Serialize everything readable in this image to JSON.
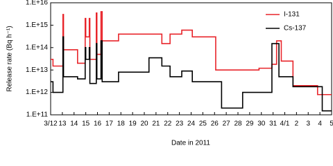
{
  "chart_data": {
    "type": "line",
    "ylabel": "Release rate  (Bq h⁻¹)",
    "xlabel": "Date in 2011",
    "ylog": true,
    "xlim": [
      0,
      24
    ],
    "ylim": [
      100000000000.0,
      1e+16
    ],
    "yticks": [
      {
        "value": 100000000000.0,
        "label": "1.E+11"
      },
      {
        "value": 1000000000000.0,
        "label": "1.E+12"
      },
      {
        "value": 10000000000000.0,
        "label": "1.E+13"
      },
      {
        "value": 100000000000000.0,
        "label": "1.E+14"
      },
      {
        "value": 1000000000000000.0,
        "label": "1.E+15"
      },
      {
        "value": 1e+16,
        "label": "1.E+16"
      }
    ],
    "xticks": [
      {
        "value": 0,
        "label": "3/12"
      },
      {
        "value": 1,
        "label": "13"
      },
      {
        "value": 2,
        "label": "14"
      },
      {
        "value": 3,
        "label": "15"
      },
      {
        "value": 4,
        "label": "16"
      },
      {
        "value": 5,
        "label": "17"
      },
      {
        "value": 6,
        "label": "18"
      },
      {
        "value": 7,
        "label": "19"
      },
      {
        "value": 8,
        "label": "20"
      },
      {
        "value": 9,
        "label": "21"
      },
      {
        "value": 10,
        "label": "22"
      },
      {
        "value": 11,
        "label": "23"
      },
      {
        "value": 12,
        "label": "24"
      },
      {
        "value": 13,
        "label": "25"
      },
      {
        "value": 14,
        "label": "26"
      },
      {
        "value": 15,
        "label": "27"
      },
      {
        "value": 16,
        "label": "28"
      },
      {
        "value": 17,
        "label": "29"
      },
      {
        "value": 18,
        "label": "30"
      },
      {
        "value": 19,
        "label": "31"
      },
      {
        "value": 20,
        "label": "4/1"
      },
      {
        "value": 21,
        "label": "2"
      },
      {
        "value": 22,
        "label": "3"
      },
      {
        "value": 23,
        "label": "4"
      },
      {
        "value": 24,
        "label": "5"
      }
    ],
    "legend": "upper right",
    "series": [
      {
        "name": "I-131",
        "color": "#e8242a",
        "x": [
          0,
          0.2,
          0.2,
          1.05,
          1.05,
          1.1,
          1.1,
          2.3,
          2.3,
          2.95,
          2.95,
          3.0,
          3.0,
          3.3,
          3.3,
          3.35,
          3.35,
          3.9,
          3.9,
          3.95,
          3.95,
          4.3,
          4.3,
          4.4,
          4.4,
          5.8,
          5.8,
          9.5,
          9.5,
          10.2,
          10.2,
          11.2,
          11.2,
          12.1,
          12.1,
          14.1,
          14.1,
          17.8,
          17.8,
          18.9,
          18.9,
          19.3,
          19.3,
          19.7,
          19.7,
          20.7,
          20.7,
          22.8,
          22.8,
          24
        ],
        "values": [
          30000000000000.0,
          30000000000000.0,
          15000000000000.0,
          15000000000000.0,
          3000000000000000.0,
          3000000000000000.0,
          80000000000000.0,
          80000000000000.0,
          20000000000000.0,
          20000000000000.0,
          2000000000000000.0,
          2000000000000000.0,
          300000000000000.0,
          300000000000000.0,
          2000000000000000.0,
          2000000000000000.0,
          30000000000000.0,
          30000000000000.0,
          3500000000000000.0,
          3500000000000000.0,
          50000000000000.0,
          50000000000000.0,
          4000000000000000.0,
          4000000000000000.0,
          200000000000000.0,
          200000000000000.0,
          400000000000000.0,
          400000000000000.0,
          150000000000000.0,
          150000000000000.0,
          400000000000000.0,
          400000000000000.0,
          600000000000000.0,
          600000000000000.0,
          300000000000000.0,
          300000000000000.0,
          10000000000000.0,
          10000000000000.0,
          12000000000000.0,
          12000000000000.0,
          18000000000000.0,
          18000000000000.0,
          200000000000000.0,
          200000000000000.0,
          25000000000000.0,
          25000000000000.0,
          2000000000000.0,
          2000000000000.0,
          800000000000.0,
          800000000000.0
        ]
      },
      {
        "name": "Cs-137",
        "color": "#000000",
        "x": [
          0,
          0.2,
          0.2,
          1.05,
          1.05,
          1.1,
          1.1,
          2.3,
          2.3,
          2.95,
          2.95,
          3.0,
          3.0,
          3.3,
          3.3,
          3.35,
          3.35,
          3.9,
          3.9,
          3.95,
          3.95,
          4.3,
          4.3,
          4.4,
          4.4,
          5.8,
          5.8,
          8.4,
          8.4,
          9.5,
          9.5,
          10.2,
          10.2,
          11.2,
          11.2,
          12.1,
          12.1,
          14.6,
          14.6,
          16.4,
          16.4,
          18.9,
          18.9,
          19.5,
          19.5,
          20.7,
          20.7,
          23.2,
          23.2,
          24
        ],
        "values": [
          3000000000000.0,
          3000000000000.0,
          1000000000000.0,
          1000000000000.0,
          300000000000000.0,
          300000000000000.0,
          5000000000000.0,
          5000000000000.0,
          4000000000000.0,
          4000000000000.0,
          100000000000000.0,
          100000000000000.0,
          30000000000000.0,
          30000000000000.0,
          100000000000000.0,
          100000000000000.0,
          2500000000000.0,
          2500000000000.0,
          150000000000000.0,
          150000000000000.0,
          4000000000000.0,
          4000000000000.0,
          200000000000000.0,
          200000000000000.0,
          3000000000000.0,
          3000000000000.0,
          8000000000000.0,
          8000000000000.0,
          35000000000000.0,
          35000000000000.0,
          15000000000000.0,
          15000000000000.0,
          5000000000000.0,
          5000000000000.0,
          9000000000000.0,
          9000000000000.0,
          3000000000000.0,
          3000000000000.0,
          200000000000.0,
          200000000000.0,
          1000000000000.0,
          1000000000000.0,
          150000000000000.0,
          150000000000000.0,
          5000000000000.0,
          5000000000000.0,
          1800000000000.0,
          1800000000000.0,
          150000000000.0,
          150000000000.0
        ]
      }
    ]
  }
}
